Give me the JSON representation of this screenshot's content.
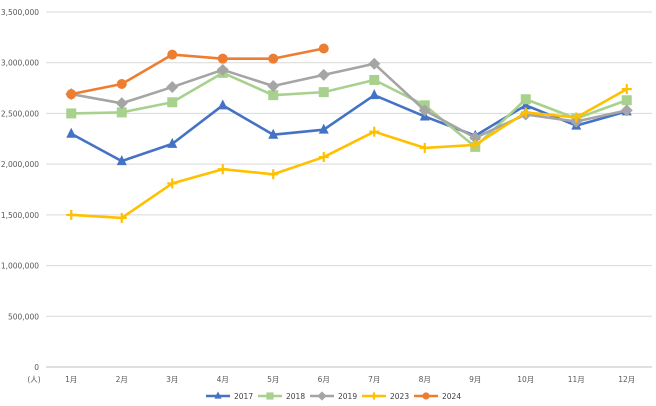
{
  "chart_data": {
    "type": "line",
    "title": "",
    "xlabel": "",
    "ylabel": "(人)",
    "categories": [
      "1月",
      "2月",
      "3月",
      "4月",
      "5月",
      "6月",
      "7月",
      "8月",
      "9月",
      "10月",
      "11月",
      "12月"
    ],
    "y_tick_labels": [
      "0",
      "500,000",
      "1,000,000",
      "1,500,000",
      "2,000,000",
      "2,500,000",
      "3,000,000",
      "3,500,000"
    ],
    "y_ticks": [
      0,
      500000,
      1000000,
      1500000,
      2000000,
      2500000,
      3000000,
      3500000
    ],
    "ylim": [
      0,
      3500000
    ],
    "grid": true,
    "legend_position": "bottom",
    "series": [
      {
        "name": "2017",
        "color": "#4472c4",
        "marker": "triangle",
        "values": [
          2300000,
          2030000,
          2200000,
          2580000,
          2290000,
          2340000,
          2680000,
          2470000,
          2280000,
          2580000,
          2380000,
          2520000
        ]
      },
      {
        "name": "2018",
        "color": "#a9d18e",
        "marker": "square",
        "values": [
          2500000,
          2510000,
          2610000,
          2900000,
          2680000,
          2710000,
          2830000,
          2580000,
          2170000,
          2640000,
          2450000,
          2630000
        ]
      },
      {
        "name": "2019",
        "color": "#a5a5a5",
        "marker": "diamond",
        "values": [
          2690000,
          2600000,
          2760000,
          2930000,
          2770000,
          2880000,
          2990000,
          2530000,
          2260000,
          2490000,
          2420000,
          2530000
        ]
      },
      {
        "name": "2023",
        "color": "#ffc000",
        "marker": "plus",
        "values": [
          1500000,
          1470000,
          1810000,
          1950000,
          1900000,
          2070000,
          2320000,
          2160000,
          2190000,
          2510000,
          2460000,
          2740000
        ]
      },
      {
        "name": "2024",
        "color": "#ed7d31",
        "marker": "circle",
        "values": [
          2690000,
          2790000,
          3080000,
          3040000,
          3040000,
          3140000,
          null,
          null,
          null,
          null,
          null,
          null
        ]
      }
    ]
  }
}
